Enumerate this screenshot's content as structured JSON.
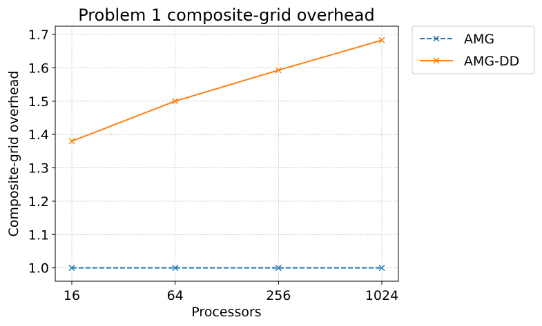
{
  "chart_data": {
    "type": "line",
    "title": "Problem 1 composite-grid overhead",
    "xlabel": "Processors",
    "ylabel": "Composite-grid overhead",
    "x_scale": "log2",
    "x": [
      16,
      64,
      256,
      1024
    ],
    "x_tick_labels": [
      "16",
      "64",
      "256",
      "1024"
    ],
    "ylim": [
      0.96,
      1.725
    ],
    "y_ticks": [
      1.0,
      1.1,
      1.2,
      1.3,
      1.4,
      1.5,
      1.6,
      1.7
    ],
    "y_tick_labels": [
      "1.0",
      "1.1",
      "1.2",
      "1.3",
      "1.4",
      "1.5",
      "1.6",
      "1.7"
    ],
    "grid": true,
    "legend_position": "outside-top-right",
    "series": [
      {
        "name": "AMG",
        "values": [
          1.0,
          1.0,
          1.0,
          1.0
        ],
        "color": "#1f77b4",
        "line_style": "dashed",
        "marker": "x"
      },
      {
        "name": "AMG-DD",
        "values": [
          1.38,
          1.5,
          1.593,
          1.683
        ],
        "color": "#ff7f0e",
        "line_style": "solid",
        "marker": "x"
      }
    ]
  }
}
